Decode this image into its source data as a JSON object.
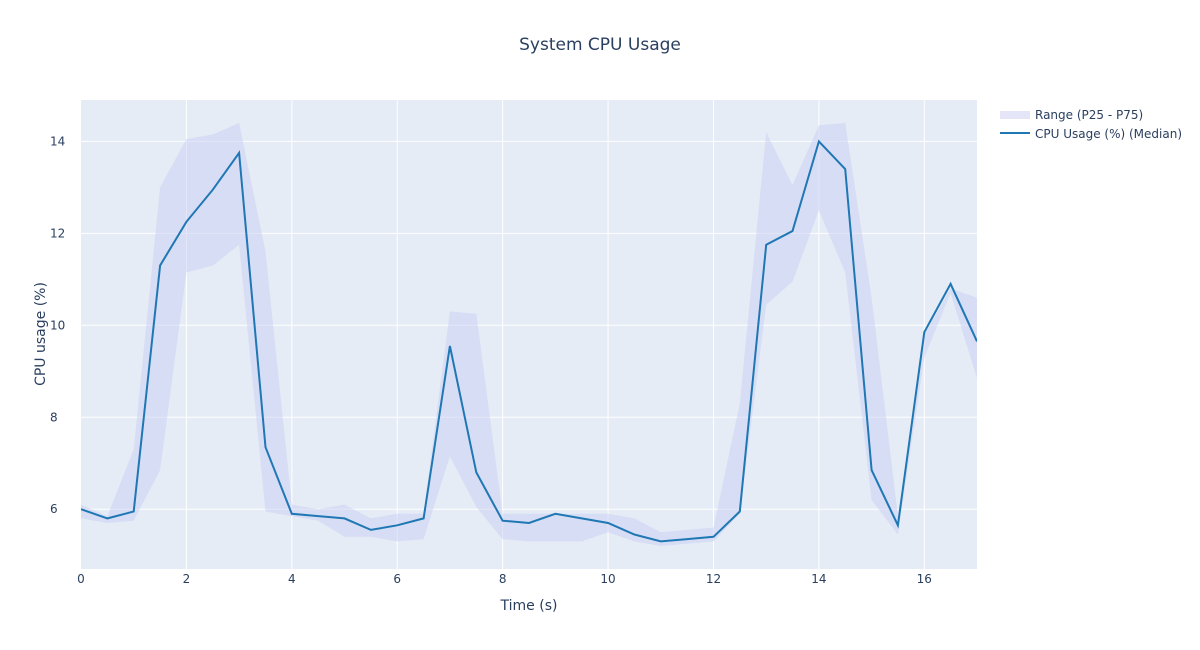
{
  "chart_data": {
    "type": "line",
    "title": "System CPU Usage",
    "xlabel": "Time (s)",
    "ylabel": "CPU usage (%)",
    "xlim": [
      0,
      17
    ],
    "ylim": [
      4.7,
      14.9
    ],
    "x_ticks": [
      0,
      2,
      4,
      6,
      8,
      10,
      12,
      14,
      16
    ],
    "y_ticks": [
      6,
      8,
      10,
      12,
      14
    ],
    "grid": true,
    "legend_position": "top-right",
    "x": [
      0,
      0.5,
      1,
      1.5,
      2,
      2.5,
      3,
      3.5,
      4,
      4.5,
      5,
      5.5,
      6,
      6.5,
      7,
      7.5,
      8,
      8.5,
      9,
      9.5,
      10,
      10.5,
      11,
      11.5,
      12,
      12.5,
      13,
      13.5,
      14,
      14.5,
      15,
      15.5,
      16,
      16.5,
      17
    ],
    "series": [
      {
        "name": "Range (P25 - P75)",
        "kind": "band",
        "color": "#c9cdf2",
        "upper": [
          6.1,
          5.85,
          7.3,
          13.0,
          14.05,
          14.15,
          14.4,
          11.6,
          6.1,
          6.0,
          6.1,
          5.8,
          5.9,
          5.9,
          10.3,
          10.25,
          5.9,
          5.9,
          5.9,
          5.9,
          5.9,
          5.8,
          5.5,
          5.55,
          5.6,
          8.3,
          14.2,
          13.05,
          14.35,
          14.4,
          10.6,
          5.85,
          9.8,
          10.8,
          10.6
        ],
        "lower": [
          5.8,
          5.7,
          5.75,
          6.85,
          11.15,
          11.3,
          11.75,
          5.95,
          5.85,
          5.75,
          5.4,
          5.4,
          5.3,
          5.35,
          7.15,
          6.05,
          5.35,
          5.3,
          5.3,
          5.3,
          5.5,
          5.3,
          5.2,
          5.25,
          5.3,
          5.9,
          10.45,
          10.95,
          12.5,
          11.15,
          6.2,
          5.45,
          9.3,
          10.7,
          8.85
        ]
      },
      {
        "name": "CPU Usage (%) (Median)",
        "kind": "line",
        "color": "#1f77b4",
        "values": [
          6.0,
          5.8,
          5.95,
          11.3,
          12.25,
          12.95,
          13.75,
          7.35,
          5.9,
          5.85,
          5.8,
          5.55,
          5.65,
          5.8,
          9.55,
          6.8,
          5.75,
          5.7,
          5.9,
          5.8,
          5.7,
          5.45,
          5.3,
          5.35,
          5.4,
          5.95,
          11.75,
          12.05,
          14.0,
          13.4,
          6.85,
          5.65,
          9.85,
          10.9,
          9.65
        ]
      }
    ]
  },
  "colors": {
    "plot_bg": "#e5ecf6",
    "grid": "#ffffff",
    "text": "#2a3f5f",
    "band": "#c9cdf2",
    "line": "#1f77b4"
  }
}
